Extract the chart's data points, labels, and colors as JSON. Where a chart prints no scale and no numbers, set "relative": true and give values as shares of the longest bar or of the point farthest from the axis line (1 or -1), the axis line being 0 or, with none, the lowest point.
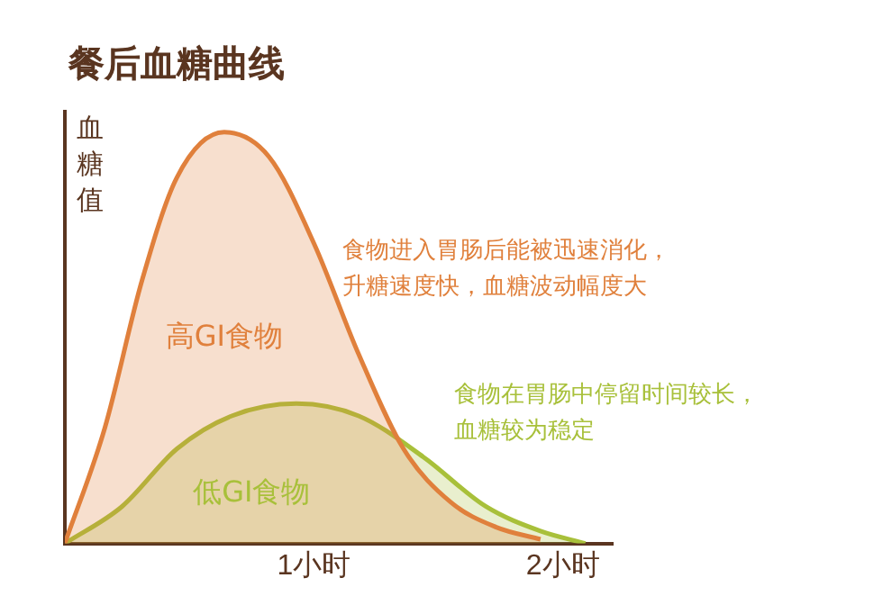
{
  "chart_data": {
    "type": "area",
    "title": "餐后血糖曲线",
    "ylabel": "血糖值",
    "relative": true,
    "xlim": [
      0,
      2.2
    ],
    "xticks": [
      {
        "value": 1,
        "label": "1小时"
      },
      {
        "value": 2,
        "label": "2小时"
      }
    ],
    "grid": false,
    "legend": false,
    "marker": "none",
    "series": [
      {
        "name": "高GI食物",
        "color": "#e0803c",
        "x": [
          0,
          0.16,
          0.31,
          0.45,
          0.64,
          0.82,
          1.0,
          1.18,
          1.36,
          1.55,
          1.73,
          1.91
        ],
        "values": [
          0,
          0.28,
          0.64,
          0.89,
          1,
          0.94,
          0.73,
          0.46,
          0.23,
          0.1,
          0.04,
          0.01
        ]
      },
      {
        "name": "低GI食物",
        "color": "#a8c03a",
        "x": [
          0,
          0.23,
          0.45,
          0.67,
          0.93,
          1.18,
          1.44,
          1.69,
          1.91,
          2.09
        ],
        "values": [
          0,
          0.09,
          0.23,
          0.31,
          0.34,
          0.31,
          0.21,
          0.09,
          0.03,
          0
        ]
      }
    ],
    "annotations": [
      "食物进入胃肠后能被迅速消化，升糖速度快，血糖波动幅度大",
      "食物在胃肠中停留时间较长，血糖较为稳定"
    ]
  }
}
